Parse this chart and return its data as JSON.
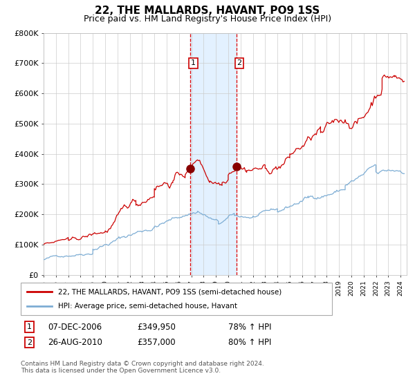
{
  "title": "22, THE MALLARDS, HAVANT, PO9 1SS",
  "subtitle": "Price paid vs. HM Land Registry's House Price Index (HPI)",
  "title_fontsize": 11,
  "subtitle_fontsize": 9,
  "background_color": "#ffffff",
  "plot_bg_color": "#ffffff",
  "grid_color": "#cccccc",
  "red_line_color": "#cc0000",
  "blue_line_color": "#7dadd4",
  "shading_color": "#ddeeff",
  "dashed_line_color": "#dd0000",
  "sale1_date_num": 2006.93,
  "sale2_date_num": 2010.65,
  "sale1_price": 349950,
  "sale2_price": 357000,
  "legend_label1": "22, THE MALLARDS, HAVANT, PO9 1SS (semi-detached house)",
  "legend_label2": "HPI: Average price, semi-detached house, Havant",
  "note1_label": "1",
  "note2_label": "2",
  "note1_date": "07-DEC-2006",
  "note2_date": "26-AUG-2010",
  "note1_price": "£349,950",
  "note2_price": "£357,000",
  "note1_hpi": "78% ↑ HPI",
  "note2_hpi": "80% ↑ HPI",
  "footer": "Contains HM Land Registry data © Crown copyright and database right 2024.\nThis data is licensed under the Open Government Licence v3.0.",
  "ylim": [
    0,
    800000
  ],
  "ytick_vals": [
    0,
    100000,
    200000,
    300000,
    400000,
    500000,
    600000,
    700000,
    800000
  ],
  "ytick_labels": [
    "£0",
    "£100K",
    "£200K",
    "£300K",
    "£400K",
    "£500K",
    "£600K",
    "£700K",
    "£800K"
  ]
}
